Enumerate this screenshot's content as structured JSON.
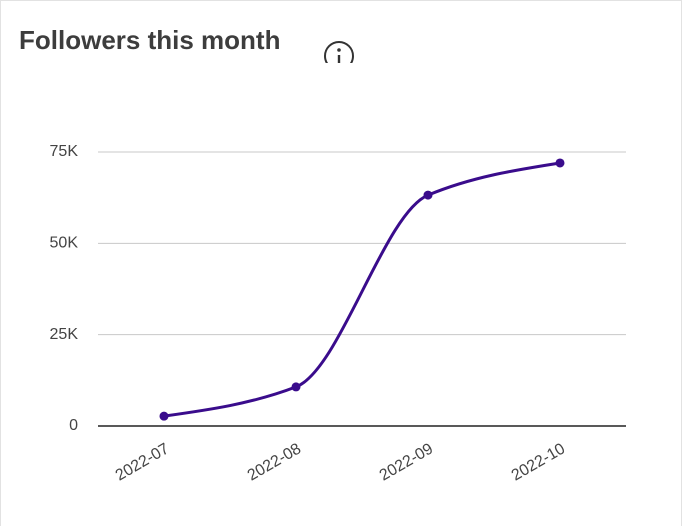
{
  "chart_data": {
    "type": "line",
    "title": "Followers this month",
    "categories": [
      "2022-07",
      "2022-08",
      "2022-09",
      "2022-10"
    ],
    "values": [
      2700,
      10700,
      63200,
      72000
    ],
    "color": "#3a0c8c",
    "ylim": [
      0,
      75000
    ],
    "yticks": [
      0,
      {
        "value": 25000,
        "label": "25K"
      },
      {
        "value": 50000,
        "label": "50K"
      },
      {
        "value": 75000,
        "label": "75K"
      }
    ],
    "grid": true
  }
}
